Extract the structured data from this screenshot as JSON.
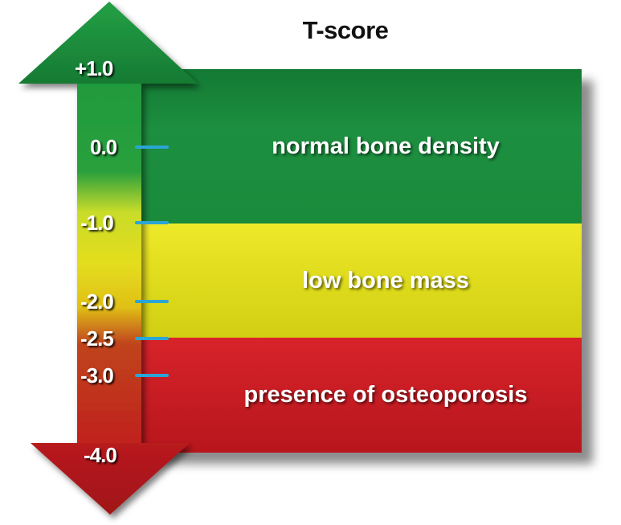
{
  "title": "T-score",
  "bands": {
    "normal": {
      "label": "normal bone density",
      "color": "#1b8a3c"
    },
    "low": {
      "label": "low bone mass",
      "color": "#e3e01c"
    },
    "osteo": {
      "label": "presence of osteoporosis",
      "color": "#c81e24"
    }
  },
  "scale": {
    "labels": [
      "+1.0",
      "0.0",
      "-1.0",
      "-2.0",
      "-2.5",
      "-3.0",
      "-4.0"
    ],
    "tick_color": "#2aa5d6"
  }
}
